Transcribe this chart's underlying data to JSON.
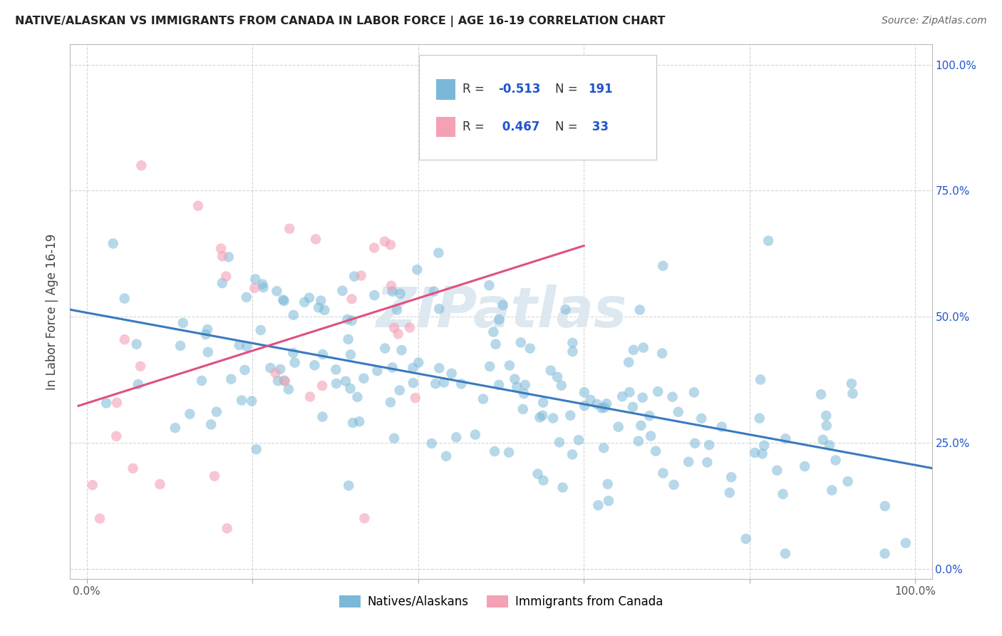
{
  "title": "NATIVE/ALASKAN VS IMMIGRANTS FROM CANADA IN LABOR FORCE | AGE 16-19 CORRELATION CHART",
  "source": "Source: ZipAtlas.com",
  "ylabel": "In Labor Force | Age 16-19",
  "xlim": [
    0.0,
    1.0
  ],
  "ylim": [
    0.0,
    1.0
  ],
  "bg_color": "#ffffff",
  "grid_color": "#cccccc",
  "blue_color": "#7bb8d8",
  "pink_color": "#f4a0b5",
  "blue_line_color": "#3a7abf",
  "pink_line_color": "#e05080",
  "r_value_color": "#2255cc",
  "label_color": "#2255cc",
  "watermark_color": "#dde8f0",
  "legend_r1_val": "-0.513",
  "legend_n1_val": "191",
  "legend_r2_val": "0.467",
  "legend_n2_val": "33",
  "native_N": 191,
  "canada_N": 33,
  "native_r": -0.513,
  "canada_r": 0.467
}
